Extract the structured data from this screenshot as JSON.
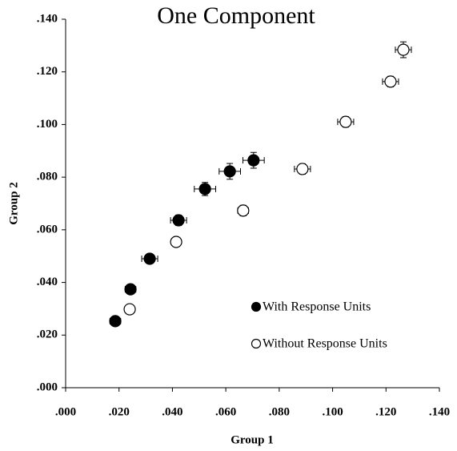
{
  "chart_data": {
    "type": "scatter",
    "title": "One Component",
    "x_label": "Group 1",
    "y_label": "Group 2",
    "xlim": [
      0,
      0.14
    ],
    "ylim": [
      0,
      0.14
    ],
    "xticks": [
      {
        "value": 0,
        "label": ".000"
      },
      {
        "value": 0.02,
        "label": ".020"
      },
      {
        "value": 0.04,
        "label": ".040"
      },
      {
        "value": 0.06,
        "label": ".060"
      },
      {
        "value": 0.08,
        "label": ".080"
      },
      {
        "value": 0.1,
        "label": ".100"
      },
      {
        "value": 0.12,
        "label": ".120"
      },
      {
        "value": 0.14,
        "label": ".140"
      }
    ],
    "yticks": [
      {
        "value": 0,
        "label": ".000"
      },
      {
        "value": 0.02,
        "label": ".020"
      },
      {
        "value": 0.04,
        "label": ".040"
      },
      {
        "value": 0.06,
        "label": ".060"
      },
      {
        "value": 0.08,
        "label": ".080"
      },
      {
        "value": 0.1,
        "label": ".100"
      },
      {
        "value": 0.12,
        "label": ".120"
      },
      {
        "value": 0.14,
        "label": ".140"
      }
    ],
    "grid": false,
    "legend": "lower right",
    "series": [
      {
        "name": "With Response Units",
        "color": "#000000",
        "filled": true,
        "x": [
          0.0186,
          0.0243,
          0.0315,
          0.0423,
          0.0522,
          0.0615,
          0.0704
        ],
        "values": [
          0.0253,
          0.0374,
          0.049,
          0.0636,
          0.0755,
          0.0822,
          0.0864
        ],
        "xerr": [
          0.002,
          0.002,
          0.003,
          0.003,
          0.004,
          0.004,
          0.004
        ],
        "yerr": [
          0.001,
          0.0015,
          0.0015,
          0.002,
          0.0025,
          0.003,
          0.003
        ]
      },
      {
        "name": "Without Response Units",
        "color": "#000000",
        "filled": false,
        "x": [
          0.024,
          0.0414,
          0.0665,
          0.0887,
          0.1049,
          0.1217,
          0.1265
        ],
        "values": [
          0.0298,
          0.0554,
          0.0673,
          0.0831,
          0.101,
          0.1163,
          0.1284
        ],
        "xerr": [
          0.001,
          0.001,
          0.002,
          0.003,
          0.003,
          0.003,
          0.003
        ],
        "yerr": [
          0.001,
          0.001,
          0.002,
          0.002,
          0.002,
          0.002,
          0.003
        ]
      }
    ]
  }
}
